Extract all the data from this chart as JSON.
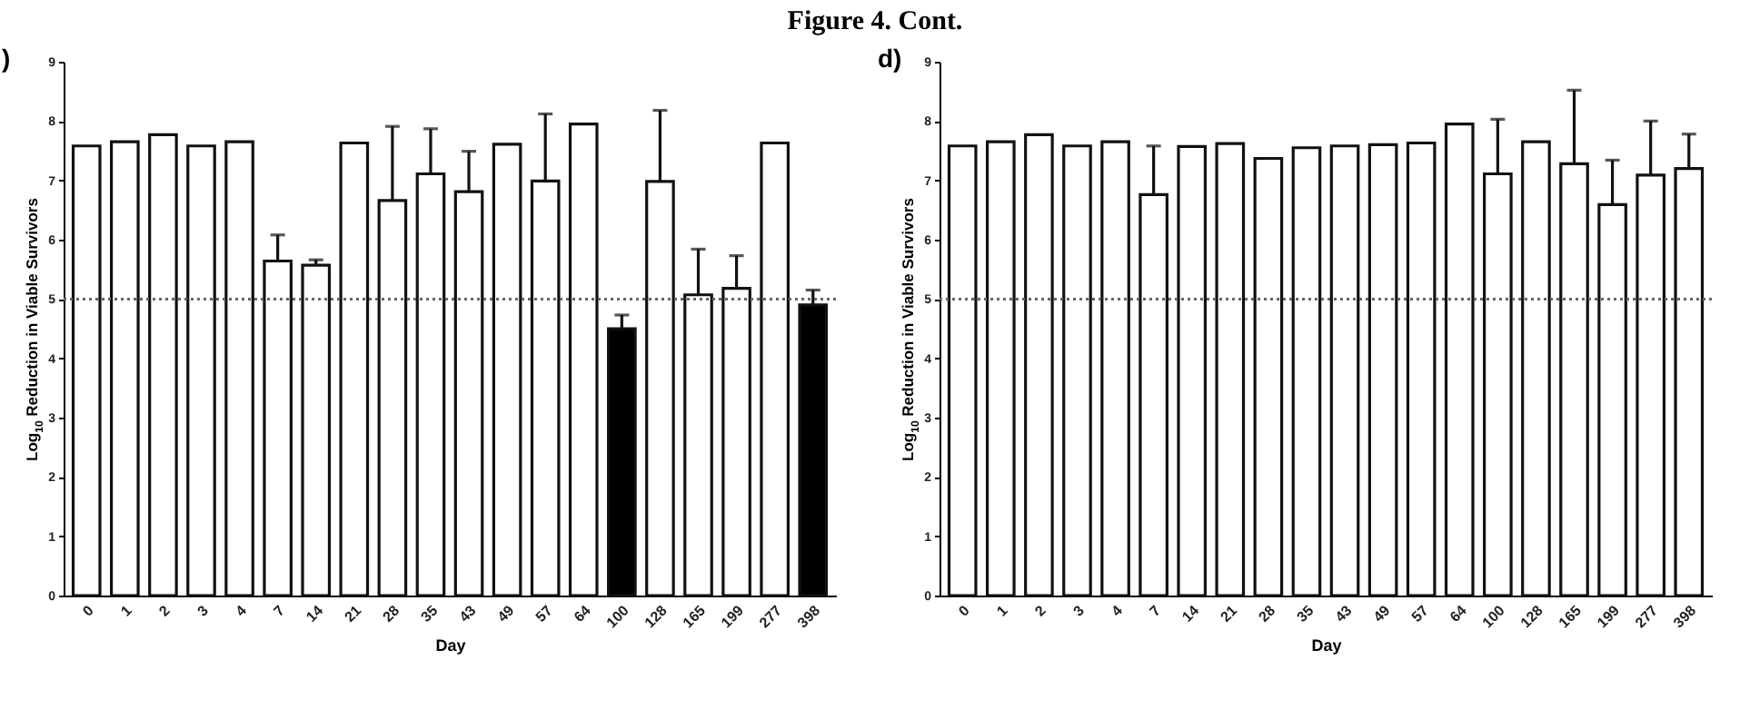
{
  "chart_data": [
    {
      "type": "bar",
      "title": "Figure 4. Cont.",
      "annotations": [
        ")"
      ],
      "xlabel": "Day",
      "ylabel": "Log$_{10}$ Reduction in Viable Survivors",
      "categories": [
        "0",
        "1",
        "2",
        "3",
        "4",
        "7",
        "14",
        "21",
        "28",
        "35",
        "43",
        "49",
        "57",
        "64",
        "100",
        "128",
        "165",
        "199",
        "277",
        "398"
      ],
      "values": [
        7.58,
        7.65,
        7.77,
        7.58,
        7.65,
        5.64,
        5.57,
        7.63,
        6.66,
        7.11,
        6.81,
        7.61,
        6.99,
        7.95,
        4.5,
        6.98,
        5.07,
        5.18,
        7.63,
        4.9
      ],
      "errors": [
        null,
        null,
        null,
        null,
        null,
        [
          5.64,
          6.08
        ],
        [
          5.57,
          5.66
        ],
        null,
        [
          6.66,
          7.91
        ],
        [
          7.11,
          7.87
        ],
        [
          6.81,
          7.49
        ],
        null,
        [
          6.99,
          8.12
        ],
        null,
        [
          4.5,
          4.73
        ],
        [
          6.98,
          8.18
        ],
        [
          5.07,
          5.84
        ],
        [
          5.18,
          5.73
        ],
        null,
        [
          4.9,
          5.15
        ]
      ],
      "colors": [
        "#ffffff",
        "#ffffff",
        "#ffffff",
        "#ffffff",
        "#ffffff",
        "#ffffff",
        "#ffffff",
        "#ffffff",
        "#ffffff",
        "#ffffff",
        "#ffffff",
        "#ffffff",
        "#ffffff",
        "#ffffff",
        "#000000",
        "#ffffff",
        "#ffffff",
        "#ffffff",
        "#ffffff",
        "#000000"
      ],
      "ylim": [
        0,
        9
      ],
      "yticks": [
        0,
        1,
        2,
        3,
        4,
        5,
        6,
        7,
        8,
        9
      ],
      "grid": false,
      "ref_lines": [
        {
          "axis": "y",
          "value": 5,
          "line_style": "dotted",
          "color": "#666666"
        }
      ]
    },
    {
      "type": "bar",
      "annotations": [
        "d)"
      ],
      "xlabel": "Day",
      "ylabel": "Log$_{10}$ Reduction in Viable Survivors",
      "categories": [
        "0",
        "1",
        "2",
        "3",
        "4",
        "7",
        "14",
        "21",
        "28",
        "35",
        "43",
        "49",
        "57",
        "64",
        "100",
        "128",
        "165",
        "199",
        "277",
        "398"
      ],
      "values": [
        7.58,
        7.65,
        7.77,
        7.58,
        7.65,
        6.76,
        7.57,
        7.62,
        7.37,
        7.55,
        7.58,
        7.6,
        7.63,
        7.95,
        7.11,
        7.65,
        7.28,
        6.59,
        7.09,
        7.2
      ],
      "errors": [
        null,
        null,
        null,
        null,
        null,
        [
          6.76,
          7.58
        ],
        null,
        null,
        null,
        null,
        null,
        null,
        null,
        null,
        [
          7.11,
          8.03
        ],
        null,
        [
          7.28,
          8.52
        ],
        [
          6.59,
          7.34
        ],
        [
          7.09,
          8.0
        ],
        [
          7.2,
          7.78
        ]
      ],
      "colors": [
        "#ffffff",
        "#ffffff",
        "#ffffff",
        "#ffffff",
        "#ffffff",
        "#ffffff",
        "#ffffff",
        "#ffffff",
        "#ffffff",
        "#ffffff",
        "#ffffff",
        "#ffffff",
        "#ffffff",
        "#ffffff",
        "#ffffff",
        "#ffffff",
        "#ffffff",
        "#ffffff",
        "#ffffff",
        "#ffffff"
      ],
      "ylim": [
        0,
        9
      ],
      "yticks": [
        0,
        1,
        2,
        3,
        4,
        5,
        6,
        7,
        8,
        9
      ],
      "grid": false,
      "ref_lines": [
        {
          "axis": "y",
          "value": 5,
          "line_style": "dotted",
          "color": "#666666"
        }
      ]
    }
  ]
}
